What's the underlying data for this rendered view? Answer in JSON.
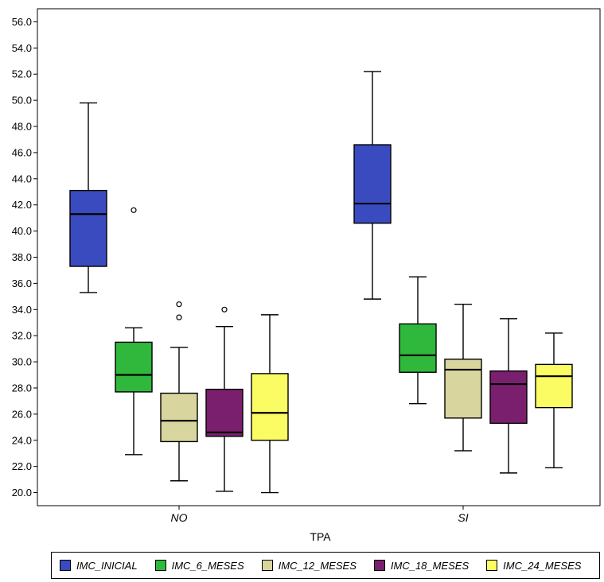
{
  "chart_data": {
    "type": "box",
    "categories": [
      "NO",
      "SI"
    ],
    "xlabel": "TPA",
    "ylabel": "",
    "ylim": [
      19,
      57
    ],
    "y_ticks": [
      "20.0",
      "22.0",
      "24.0",
      "26.0",
      "28.0",
      "30.0",
      "32.0",
      "34.0",
      "36.0",
      "38.0",
      "40.0",
      "42.0",
      "44.0",
      "46.0",
      "48.0",
      "50.0",
      "52.0",
      "54.0",
      "56.0"
    ],
    "legend_position": "bottom",
    "series": [
      {
        "name": "IMC_INICIAL",
        "color": "#3a4bbf",
        "boxes": [
          {
            "category": "NO",
            "min": 35.3,
            "q1": 37.3,
            "median": 41.3,
            "q3": 43.1,
            "max": 49.8,
            "outliers": []
          },
          {
            "category": "SI",
            "min": 34.8,
            "q1": 40.6,
            "median": 42.1,
            "q3": 46.6,
            "max": 52.2,
            "outliers": []
          }
        ]
      },
      {
        "name": "IMC_6_MESES",
        "color": "#2fb83c",
        "boxes": [
          {
            "category": "NO",
            "min": 22.9,
            "q1": 27.7,
            "median": 29.0,
            "q3": 31.5,
            "max": 32.6,
            "outliers": [
              41.6
            ]
          },
          {
            "category": "SI",
            "min": 26.8,
            "q1": 29.2,
            "median": 30.5,
            "q3": 32.9,
            "max": 36.5,
            "outliers": []
          }
        ]
      },
      {
        "name": "IMC_12_MESES",
        "color": "#d8d59e",
        "boxes": [
          {
            "category": "NO",
            "min": 20.9,
            "q1": 23.9,
            "median": 25.5,
            "q3": 27.6,
            "max": 31.1,
            "outliers": [
              33.4,
              34.4
            ]
          },
          {
            "category": "SI",
            "min": 23.2,
            "q1": 25.7,
            "median": 29.4,
            "q3": 30.2,
            "max": 34.4,
            "outliers": []
          }
        ]
      },
      {
        "name": "IMC_18_MESES",
        "color": "#7a1f6e",
        "boxes": [
          {
            "category": "NO",
            "min": 20.1,
            "q1": 24.3,
            "median": 24.6,
            "q3": 27.9,
            "max": 32.7,
            "outliers": [
              34.0
            ]
          },
          {
            "category": "SI",
            "min": 21.5,
            "q1": 25.3,
            "median": 28.3,
            "q3": 29.3,
            "max": 33.3,
            "outliers": []
          }
        ]
      },
      {
        "name": "IMC_24_MESES",
        "color": "#fbfb63",
        "boxes": [
          {
            "category": "NO",
            "min": 20.0,
            "q1": 24.0,
            "median": 26.1,
            "q3": 29.1,
            "max": 33.6,
            "outliers": []
          },
          {
            "category": "SI",
            "min": 21.9,
            "q1": 26.5,
            "median": 28.9,
            "q3": 29.8,
            "max": 32.2,
            "outliers": []
          }
        ]
      }
    ]
  }
}
